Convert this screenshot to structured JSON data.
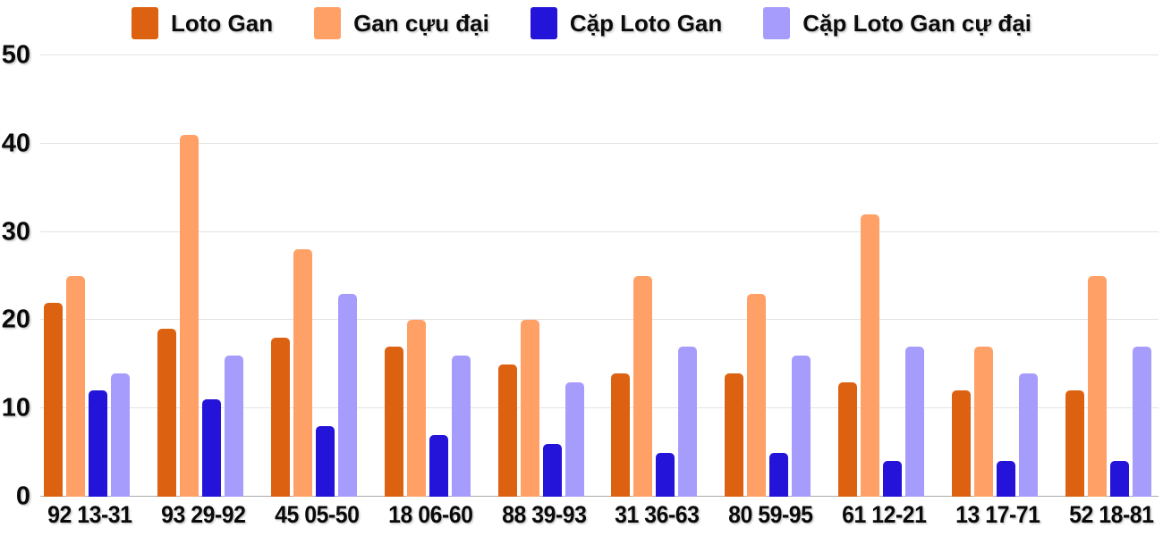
{
  "chart_data": {
    "type": "bar",
    "title": "",
    "xlabel": "",
    "ylabel": "",
    "categories": [
      "92 13-31",
      "93 29-92",
      "45 05-50",
      "18 06-60",
      "88 39-93",
      "31 36-63",
      "80 59-95",
      "61 12-21",
      "13 17-71",
      "52 18-81"
    ],
    "series": [
      {
        "name": "Loto Gan",
        "color": "#dc6211",
        "values": [
          22,
          19,
          18,
          17,
          15,
          14,
          14,
          13,
          12,
          12
        ]
      },
      {
        "name": "Gan cựu đại",
        "color": "#ffa167",
        "values": [
          25,
          41,
          28,
          20,
          20,
          25,
          23,
          32,
          17,
          25
        ]
      },
      {
        "name": "Cặp Loto Gan",
        "color": "#2413d9",
        "values": [
          12,
          11,
          8,
          7,
          6,
          5,
          5,
          4,
          4,
          4
        ]
      },
      {
        "name": "Cặp Loto Gan cự đại",
        "color": "#a59cfc",
        "values": [
          14,
          16,
          23,
          16,
          13,
          17,
          16,
          17,
          14,
          17
        ]
      }
    ],
    "y_ticks": [
      0,
      10,
      20,
      30,
      40,
      50
    ],
    "ylim": [
      0,
      50
    ],
    "grid": true,
    "legend_position": "top",
    "colors": {
      "gridline": "#e3e3e3",
      "axis_line": "#ababab",
      "text": "#0a0a0a",
      "background": "#ffffff"
    }
  }
}
